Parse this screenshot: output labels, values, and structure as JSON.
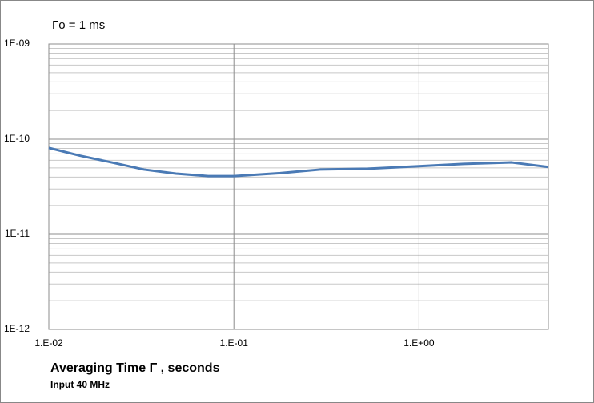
{
  "chart_data": {
    "type": "line",
    "annotation": "Γo =  1 ms",
    "x_label": "Averaging Time Γ , seconds",
    "subtitle": "Input 40 MHz",
    "x": [
      0.01,
      0.0148,
      0.0219,
      0.0327,
      0.0486,
      0.0727,
      0.1,
      0.178,
      0.292,
      0.53,
      1,
      1.74,
      3.17,
      5
    ],
    "series": [
      {
        "color": "#4a7ab5",
        "values": [
          8.1e-11,
          6.7e-11,
          5.7e-11,
          4.8e-11,
          4.35e-11,
          4.1e-11,
          4.1e-11,
          4.4e-11,
          4.8e-11,
          4.9e-11,
          5.2e-11,
          5.5e-11,
          5.7e-11,
          5.1e-11
        ]
      }
    ],
    "xlim": [
      0.01,
      5
    ],
    "ylim": [
      1e-12,
      1e-09
    ],
    "xscale": "log",
    "yscale": "log",
    "xticks": [
      {
        "value": 0.01,
        "label": "1.E-02"
      },
      {
        "value": 0.1,
        "label": "1.E-01"
      },
      {
        "value": 1,
        "label": "1.E+00"
      }
    ],
    "yticks": [
      {
        "value": 1e-12,
        "label": "1E-12"
      },
      {
        "value": 1e-11,
        "label": "1E-11"
      },
      {
        "value": 1e-10,
        "label": "1E-10"
      },
      {
        "value": 1e-09,
        "label": "1E-09"
      }
    ],
    "yminorticks": [
      2e-12,
      3e-12,
      4e-12,
      5e-12,
      6e-12,
      7e-12,
      8e-12,
      9e-12,
      2e-11,
      3e-11,
      4e-11,
      5e-11,
      6e-11,
      7e-11,
      8e-11,
      9e-11,
      2e-10,
      3e-10,
      4e-10,
      5e-10,
      6e-10,
      7e-10,
      8e-10,
      9e-10
    ],
    "grid": true
  }
}
